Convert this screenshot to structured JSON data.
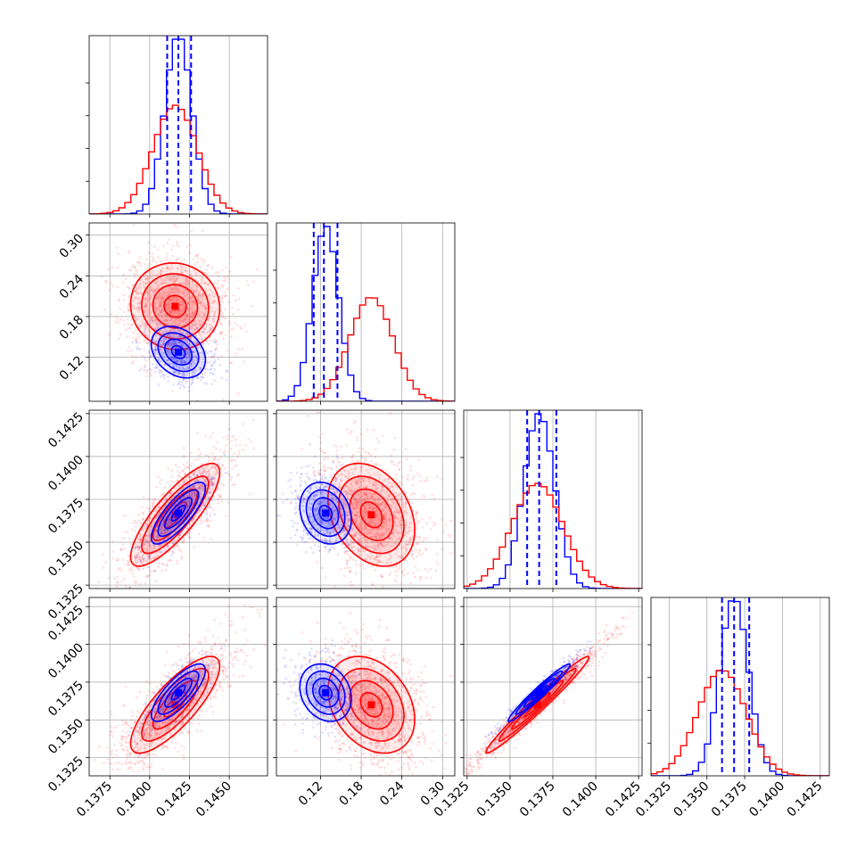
{
  "chart_data": {
    "type": "corner",
    "title": "",
    "series": [
      {
        "name": "",
        "color": "#0000ff"
      },
      {
        "name": "",
        "color": "#ff0000"
      }
    ],
    "grid": true,
    "parameters": [
      {
        "range": [
          0.1362,
          0.1474
        ],
        "ticks": [
          0.1375,
          0.14,
          0.1425,
          0.145
        ],
        "tick_labels": [
          "0.1375",
          "0.1400",
          "0.1425",
          "0.1450"
        ]
      },
      {
        "range": [
          0.055,
          0.318
        ],
        "ticks": [
          0.12,
          0.18,
          0.24,
          0.3
        ],
        "tick_labels": [
          "0.12",
          "0.18",
          "0.24",
          "0.30"
        ]
      },
      {
        "range": [
          0.1323,
          0.1427
        ],
        "ticks": [
          0.1325,
          0.135,
          0.1375,
          0.14,
          0.1425
        ],
        "tick_labels": [
          "0.1325",
          "0.1350",
          "0.1375",
          "0.1400",
          "0.1425"
        ]
      },
      {
        "range": [
          0.1313,
          0.1431
        ],
        "ticks": [
          0.1325,
          0.135,
          0.1375,
          0.14,
          0.1425
        ],
        "tick_labels": [
          "0.1325",
          "0.1350",
          "0.1375",
          "0.1400",
          "0.1425"
        ]
      }
    ],
    "blue": {
      "mean": [
        0.1418,
        0.1275,
        0.1367,
        0.1368
      ],
      "sd": [
        0.00085,
        0.019,
        0.0009,
        0.00095
      ],
      "quantiles": [
        [
          0.1411,
          0.1418,
          0.1426
        ],
        [
          0.11,
          0.125,
          0.145
        ],
        [
          0.136,
          0.1367,
          0.1377
        ],
        [
          0.136,
          0.1368,
          0.1378
        ]
      ],
      "corr": [
        [
          1.0,
          -0.3,
          0.8,
          0.78
        ],
        [
          -0.3,
          1.0,
          -0.2,
          -0.2
        ],
        [
          0.8,
          -0.2,
          1.0,
          0.97
        ],
        [
          0.78,
          -0.2,
          0.97,
          1.0
        ]
      ]
    },
    "red": {
      "mean": [
        0.1416,
        0.195,
        0.1366,
        0.136
      ],
      "sd": [
        0.0014,
        0.032,
        0.0015,
        0.0016
      ],
      "corr": [
        [
          1.0,
          -0.05,
          0.82,
          0.8
        ],
        [
          -0.05,
          1.0,
          -0.3,
          -0.3
        ],
        [
          0.82,
          -0.3,
          1.0,
          0.98
        ],
        [
          0.8,
          -0.3,
          0.98,
          1.0
        ]
      ]
    }
  }
}
